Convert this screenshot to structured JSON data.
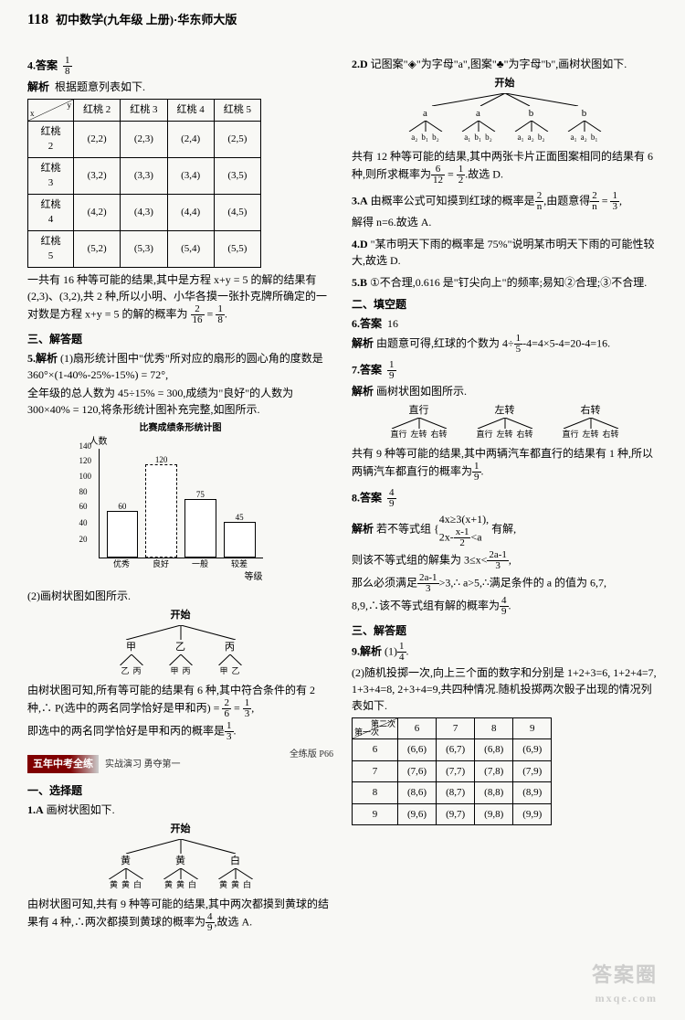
{
  "header": {
    "page_number": "118",
    "title": "初中数学(九年级 上册)·华东师大版"
  },
  "left": {
    "q4": {
      "label": "4.答案",
      "answer_num": "1",
      "answer_den": "8",
      "analysis_label": "解析",
      "analysis_text": "根据题意列表如下.",
      "table": {
        "col_header_label": "y",
        "row_header_label": "x",
        "cols": [
          "红桃 2",
          "红桃 3",
          "红桃 4",
          "红桃 5"
        ],
        "rows": [
          "红桃 2",
          "红桃 3",
          "红桃 4",
          "红桃 5"
        ],
        "cells": [
          [
            "(2,2)",
            "(2,3)",
            "(2,4)",
            "(2,5)"
          ],
          [
            "(3,2)",
            "(3,3)",
            "(3,4)",
            "(3,5)"
          ],
          [
            "(4,2)",
            "(4,3)",
            "(4,4)",
            "(4,5)"
          ],
          [
            "(5,2)",
            "(5,3)",
            "(5,4)",
            "(5,5)"
          ]
        ]
      },
      "after": "一共有 16 种等可能的结果,其中是方程 x+y = 5 的解的结果有(2,3)、(3,2),共 2 种,所以小明、小华各摸一张扑克牌所确定的一对数是方程 x+y = 5 的解的概率为",
      "after_frac1_n": "2",
      "after_frac1_d": "16",
      "after_eq": " = ",
      "after_frac2_n": "1",
      "after_frac2_d": "8",
      "after_period": "."
    },
    "sec3": {
      "title": "三、解答题"
    },
    "q5": {
      "label": "5.解析",
      "p1": "(1)扇形统计图中\"优秀\"所对应的扇形的圆心角的度数是 360°×(1-40%-25%-15%) = 72°,",
      "p2": "全年级的总人数为 45÷15% = 300,成绩为\"良好\"的人数为 300×40% = 120,将条形统计图补充完整,如图所示.",
      "chart": {
        "title": "比赛成绩条形统计图",
        "ylabel": "人数",
        "ymax": 140,
        "yticks": [
          20,
          40,
          60,
          80,
          100,
          120,
          140
        ],
        "bars": [
          {
            "label": "优秀",
            "value": 60,
            "dashed": false
          },
          {
            "label": "良好",
            "value": 120,
            "dashed": true
          },
          {
            "label": "一般",
            "value": 75,
            "dashed": false
          },
          {
            "label": "较差",
            "value": 45,
            "dashed": false
          }
        ],
        "xlabel": "等级"
      },
      "p3": "(2)画树状图如图所示.",
      "tree": {
        "root": "开始",
        "level1": [
          "甲",
          "乙",
          "丙"
        ],
        "level2": [
          [
            "乙",
            "丙"
          ],
          [
            "甲",
            "丙"
          ],
          [
            "甲",
            "乙"
          ]
        ]
      },
      "p4a": "由树状图可知,所有等可能的结果有 6 种,其中符合条件的有 2 种,∴ P(选中的两名同学恰好是甲和丙) = ",
      "p4_f1n": "2",
      "p4_f1d": "6",
      "p4_eq": " = ",
      "p4_f2n": "1",
      "p4_f2d": "3",
      "p4_comma": ",",
      "p5a": "即选中的两名同学恰好是甲和丙的概率是",
      "p5_fn": "1",
      "p5_fd": "3",
      "p5_period": "."
    },
    "ribbon": {
      "text": "五年中考全练",
      "side": "实战演习 勇夺第一",
      "ref": "全练版 P66"
    },
    "sec1": {
      "title": "一、选择题"
    },
    "q1": {
      "label": "1.A",
      "text": "画树状图如下.",
      "tree": {
        "root": "开始",
        "level1": [
          "黄",
          "黄",
          "白"
        ],
        "level2": [
          [
            "黄",
            "黄",
            "白"
          ],
          [
            "黄",
            "黄",
            "白"
          ],
          [
            "黄",
            "黄",
            "白"
          ]
        ]
      },
      "aftera": "由树状图可知,共有 9 种等可能的结果,其中两次都摸到黄球的结果有 4 种,∴两次都摸到黄球的概率为",
      "af_n": "4",
      "af_d": "9",
      "af_end": ",故选 A."
    }
  },
  "right": {
    "q2": {
      "label": "2.D",
      "texta": "记图案\"",
      "iconb": "♣",
      "textb": "\"为字母\"a\",图案\"",
      "textc": "\"为字母\"b\",画树状图如下.",
      "tree": {
        "root": "开始",
        "level1": [
          "a",
          "a",
          "b",
          "b"
        ],
        "level2": [
          [
            "a₂",
            "b₁",
            "b₂"
          ],
          [
            "a₁",
            "b₁",
            "b₂"
          ],
          [
            "a₁",
            "a₂",
            "b₂"
          ],
          [
            "a₁",
            "a₂",
            "b₁"
          ]
        ]
      },
      "aftera": "共有 12 种等可能的结果,其中两张卡片正面图案相同的结果有 6 种,则所求概率为",
      "fn": "6",
      "fd": "12",
      "eq": " = ",
      "f2n": "1",
      "f2d": "2",
      "end": ".故选 D."
    },
    "q3": {
      "label": "3.A",
      "texta": "由概率公式可知摸到红球的概率是",
      "f1n": "2",
      "f1d": "n",
      "textb": ",由题意得",
      "f2n": "2",
      "f2d": "n",
      "eq": " = ",
      "f3n": "1",
      "f3d": "3",
      "textp": ",",
      "textc": "解得 n=6.故选 A."
    },
    "q4": {
      "label": "4.D",
      "text": "\"某市明天下雨的概率是 75%\"说明某市明天下雨的可能性较大,故选 D."
    },
    "q5": {
      "label": "5.B",
      "text": "①不合理,0.616 是\"钉尖向上\"的频率;易知②合理;③不合理."
    },
    "sec2": {
      "title": "二、填空题"
    },
    "q6": {
      "label": "6.答案",
      "ans": "16",
      "anl": "解析",
      "texta": "由题意可得,红球的个数为 4÷",
      "fn": "1",
      "fd": "5",
      "textb": "-4=4×5-4=20-4=16."
    },
    "q7": {
      "label": "7.答案",
      "ans_n": "1",
      "ans_d": "9",
      "anl": "解析",
      "text": "画树状图如图所示.",
      "tree": {
        "level1": [
          "直行",
          "左转",
          "右转"
        ],
        "level2": [
          [
            "直行",
            "左转",
            "右转"
          ],
          [
            "直行",
            "左转",
            "右转"
          ],
          [
            "直行",
            "左转",
            "右转"
          ]
        ]
      },
      "aftera": "共有 9 种等可能的结果,其中两辆汽车都直行的结果有 1 种,所以两辆汽车都直行的概率为",
      "fn": "1",
      "fd": "9",
      "end": "."
    },
    "q8": {
      "label": "8.答案",
      "ans_n": "4",
      "ans_d": "9",
      "anl": "解析",
      "p1a": "若不等式组",
      "sys1": "4x≥3(x+1),",
      "sys2a": "2x-",
      "sys2fn": "x-1",
      "sys2fd": "2",
      "sys2b": "<a",
      "p1b": "有解,",
      "p2a": "则该不等式组的解集为 3≤x<",
      "p2fn": "2a-1",
      "p2fd": "3",
      "p2b": ",",
      "p3a": "那么必须满足",
      "p3fn": "2a-1",
      "p3fd": "3",
      "p3b": ">3,∴ a>5,∴满足条件的 a 的值为 6,7,",
      "p4a": "8,9,∴该不等式组有解的概率为",
      "p4fn": "4",
      "p4fd": "9",
      "p4b": "."
    },
    "sec3": {
      "title": "三、解答题"
    },
    "q9": {
      "label": "9.解析",
      "p1a": "(1)",
      "p1fn": "1",
      "p1fd": "4",
      "p1b": ".",
      "p2": "(2)随机投掷一次,向上三个面的数字和分别是 1+2+3=6, 1+2+4=7, 1+3+4=8, 2+3+4=9,共四种情况.随机投掷两次骰子出现的情况列表如下.",
      "table": {
        "diag_h": "第二次",
        "diag_v": "第一次",
        "cols": [
          "6",
          "7",
          "8",
          "9"
        ],
        "rows": [
          "6",
          "7",
          "8",
          "9"
        ],
        "cells": [
          [
            "(6,6)",
            "(6,7)",
            "(6,8)",
            "(6,9)"
          ],
          [
            "(7,6)",
            "(7,7)",
            "(7,8)",
            "(7,9)"
          ],
          [
            "(8,6)",
            "(8,7)",
            "(8,8)",
            "(8,9)"
          ],
          [
            "(9,6)",
            "(9,7)",
            "(9,8)",
            "(9,9)"
          ]
        ]
      }
    }
  },
  "watermark": "答案圈",
  "watermark_url": "mxqe.com"
}
